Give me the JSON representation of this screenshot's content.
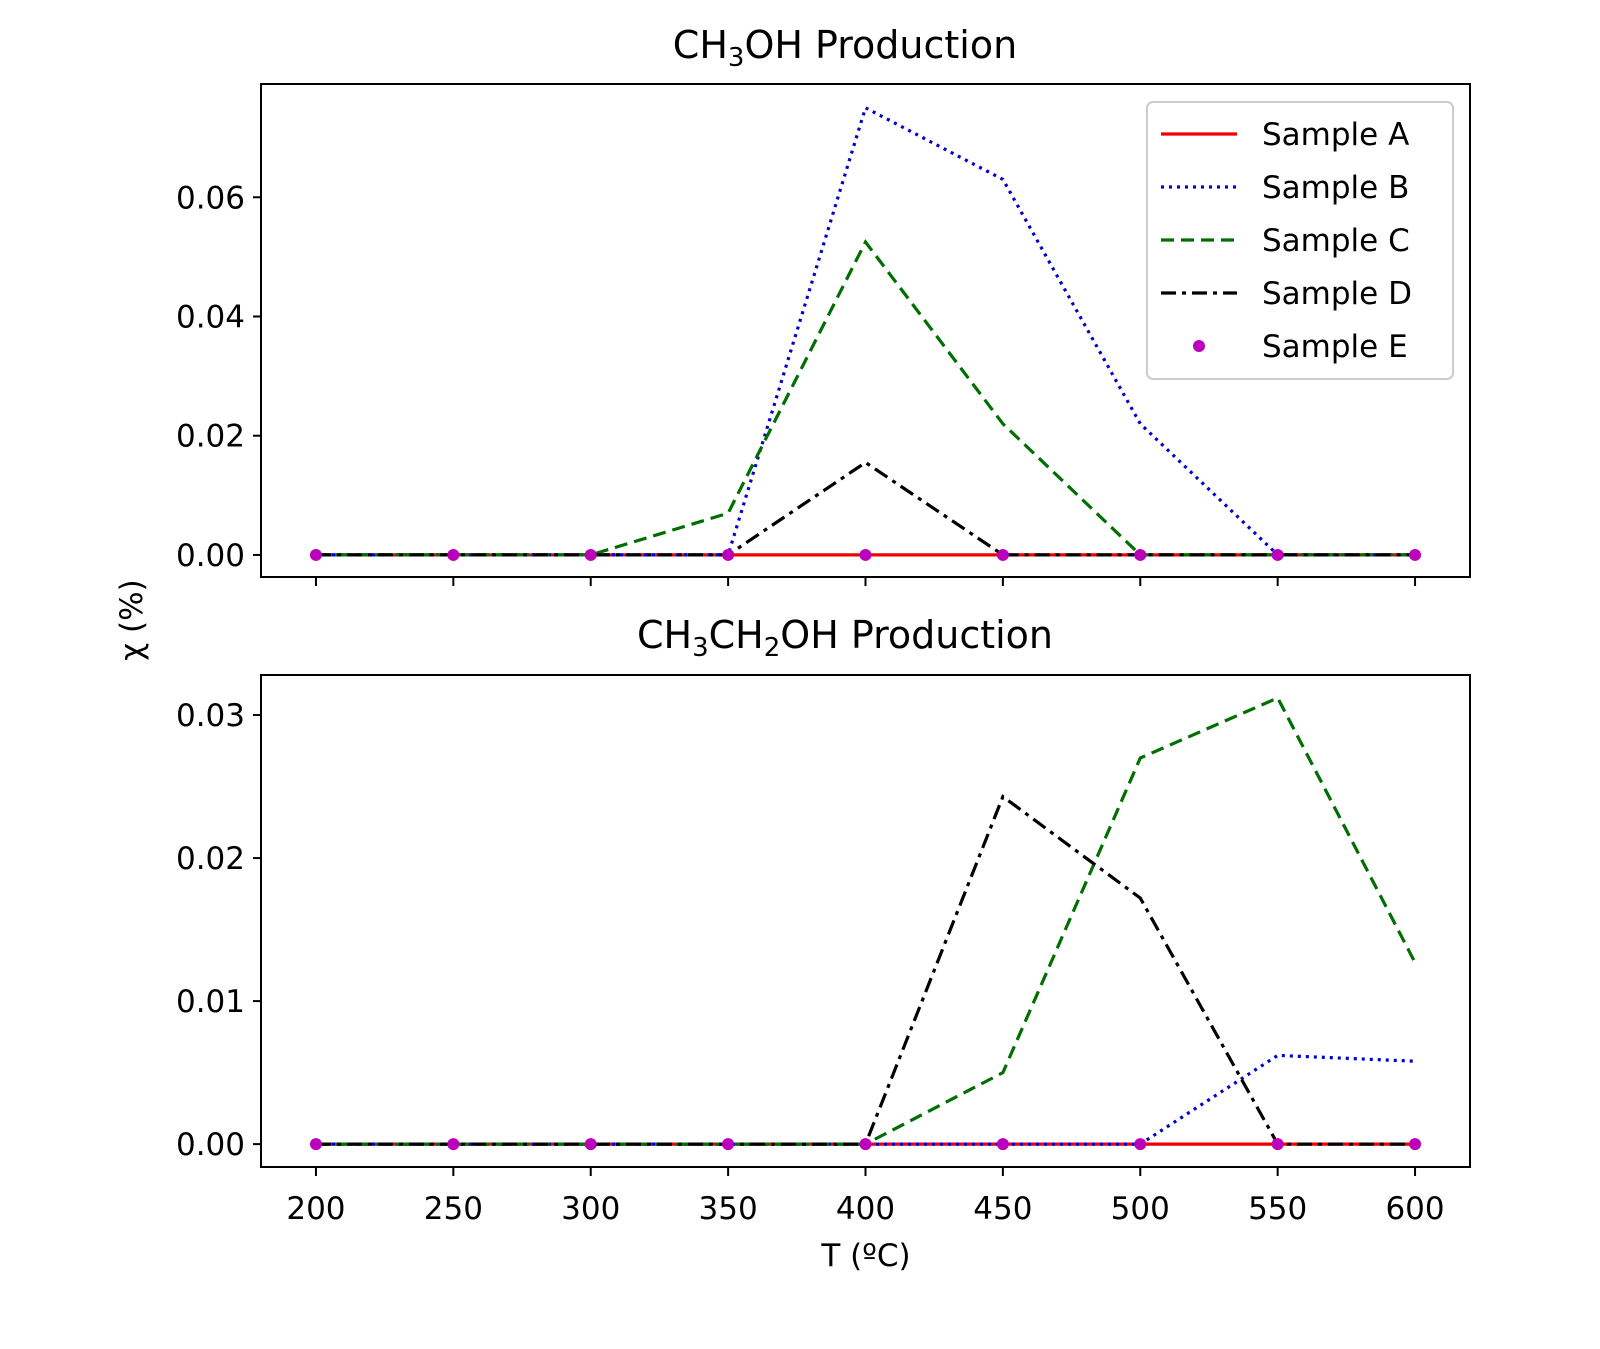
{
  "figure": {
    "ylabel": "χ (%)",
    "xlabel": "T (ºC)"
  },
  "legend": {
    "placement": "upper-right",
    "entries": [
      "Sample A",
      "Sample B",
      "Sample C",
      "Sample D",
      "Sample E"
    ]
  },
  "series_style": [
    {
      "name": "Sample A",
      "color": "#ee0000",
      "style": "solid"
    },
    {
      "name": "Sample B",
      "color": "#0000cc",
      "style": "dotted"
    },
    {
      "name": "Sample C",
      "color": "#006e00",
      "style": "dashed"
    },
    {
      "name": "Sample D",
      "color": "#000000",
      "style": "dashdot"
    },
    {
      "name": "Sample E",
      "color": "#bb00bb",
      "style": "markers"
    }
  ],
  "chart_data": [
    {
      "type": "line",
      "title": {
        "prefix": "CH",
        "sub1": "3",
        "rest": "OH Production"
      },
      "x": [
        200,
        250,
        300,
        350,
        400,
        450,
        500,
        550,
        600
      ],
      "xlim": [
        180,
        620
      ],
      "ylim": [
        -0.0037,
        0.079
      ],
      "yticks": [
        0.0,
        0.02,
        0.04,
        0.06
      ],
      "ytick_labels": [
        "0.00",
        "0.02",
        "0.04",
        "0.06"
      ],
      "series": [
        {
          "name": "Sample A",
          "values": [
            0,
            0,
            0,
            0,
            0,
            0,
            0,
            0,
            0
          ]
        },
        {
          "name": "Sample B",
          "values": [
            0,
            0,
            0,
            0,
            0.075,
            0.063,
            0.022,
            0,
            0
          ]
        },
        {
          "name": "Sample C",
          "values": [
            0,
            0,
            0,
            0.007,
            0.0525,
            0.022,
            0,
            0,
            0
          ]
        },
        {
          "name": "Sample D",
          "values": [
            0,
            0,
            0,
            0,
            0.0155,
            0,
            0,
            0,
            0
          ]
        },
        {
          "name": "Sample E",
          "values": [
            0,
            0,
            0,
            0,
            0,
            0,
            0,
            0,
            0
          ]
        }
      ]
    },
    {
      "type": "line",
      "title": {
        "prefix": "CH",
        "sub1": "3",
        "mid": "CH",
        "sub2": "2",
        "rest": "OH Production"
      },
      "x": [
        200,
        250,
        300,
        350,
        400,
        450,
        500,
        550,
        600
      ],
      "xlim": [
        180,
        620
      ],
      "xticks": [
        200,
        250,
        300,
        350,
        400,
        450,
        500,
        550,
        600
      ],
      "xtick_labels": [
        "200",
        "250",
        "300",
        "350",
        "400",
        "450",
        "500",
        "550",
        "600"
      ],
      "ylim": [
        -0.0016,
        0.0328
      ],
      "yticks": [
        0.0,
        0.01,
        0.02,
        0.03
      ],
      "ytick_labels": [
        "0.00",
        "0.01",
        "0.02",
        "0.03"
      ],
      "series": [
        {
          "name": "Sample A",
          "values": [
            0,
            0,
            0,
            0,
            0,
            0,
            0,
            0,
            0
          ]
        },
        {
          "name": "Sample B",
          "values": [
            0,
            0,
            0,
            0,
            0,
            0,
            0,
            0.0062,
            0.0058
          ]
        },
        {
          "name": "Sample C",
          "values": [
            0,
            0,
            0,
            0,
            0,
            0.005,
            0.027,
            0.0312,
            0.0127
          ]
        },
        {
          "name": "Sample D",
          "values": [
            0,
            0,
            0,
            0,
            0,
            0.0243,
            0.0172,
            0,
            0
          ]
        },
        {
          "name": "Sample E",
          "values": [
            0,
            0,
            0,
            0,
            0,
            0,
            0,
            0,
            0
          ]
        }
      ]
    }
  ]
}
